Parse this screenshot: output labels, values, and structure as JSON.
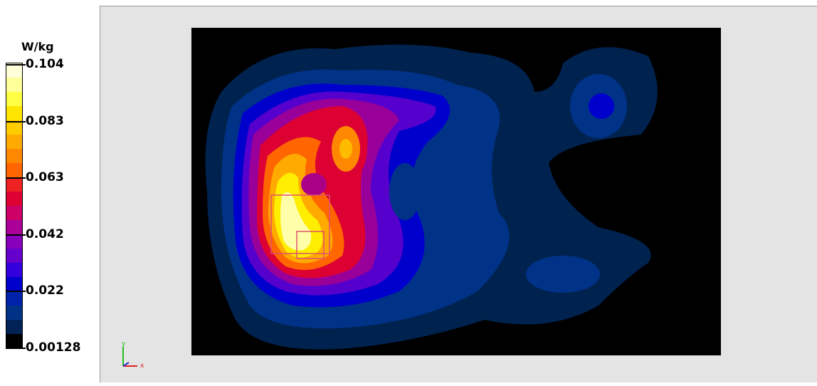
{
  "legend": {
    "unit": "W/kg",
    "labels": [
      "0.104",
      "0.083",
      "0.063",
      "0.042",
      "0.022",
      "0.00128"
    ]
  }
}
